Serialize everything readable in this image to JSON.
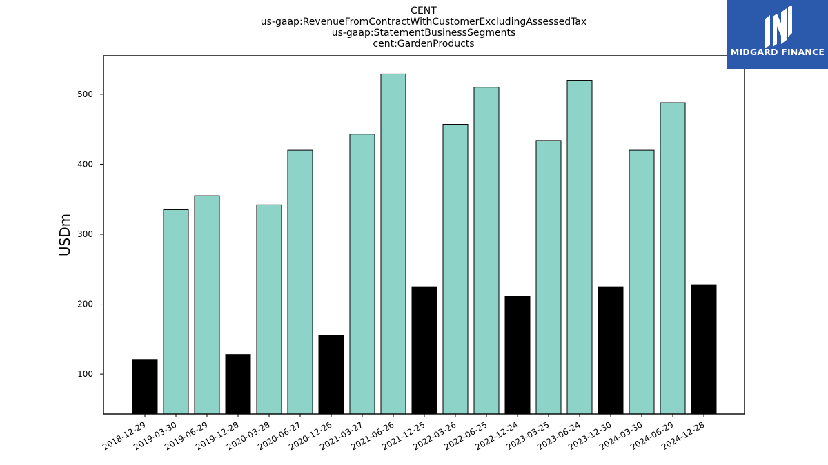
{
  "chart_data": {
    "type": "bar",
    "title_lines": [
      "CENT",
      "us-gaap:RevenueFromContractWithCustomerExcludingAssessedTax",
      "us-gaap:StatementBusinessSegments",
      "cent:GardenProducts"
    ],
    "xlabel": "",
    "ylabel": "USDm",
    "ylim": [
      43,
      555
    ],
    "yticks": [
      100,
      200,
      300,
      400,
      500
    ],
    "grid": false,
    "categories": [
      "2018-12-29",
      "2019-03-30",
      "2019-06-29",
      "2019-12-28",
      "2020-03-28",
      "2020-06-27",
      "2020-12-26",
      "2021-03-27",
      "2021-06-26",
      "2021-12-25",
      "2022-03-26",
      "2022-06-25",
      "2022-12-24",
      "2023-03-25",
      "2023-06-24",
      "2023-12-30",
      "2024-03-30",
      "2024-06-29",
      "2024-12-28"
    ],
    "values": [
      121,
      335,
      355,
      128,
      342,
      420,
      155,
      443,
      529,
      225,
      457,
      510,
      211,
      434,
      520,
      225,
      420,
      488,
      228
    ],
    "bar_colors": [
      "#000000",
      "#8dd3c7",
      "#8dd3c7",
      "#000000",
      "#8dd3c7",
      "#8dd3c7",
      "#000000",
      "#8dd3c7",
      "#8dd3c7",
      "#000000",
      "#8dd3c7",
      "#8dd3c7",
      "#000000",
      "#8dd3c7",
      "#8dd3c7",
      "#000000",
      "#8dd3c7",
      "#8dd3c7",
      "#000000"
    ]
  },
  "logo": {
    "text": "MIDGARD FINANCE",
    "background": "#2b5aac"
  }
}
